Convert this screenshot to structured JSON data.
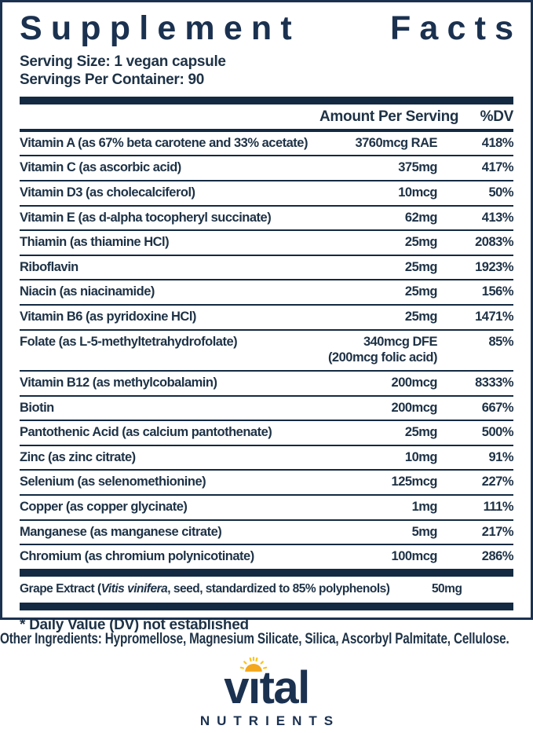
{
  "colors": {
    "navy": "#1b3150",
    "bar": "#142a42",
    "ink": "#1e3246",
    "gold": "#f3a81d",
    "ray": "#fcc21c"
  },
  "panel": {
    "title_word1": "Supplement",
    "title_word2": "Facts",
    "serving_size": "Serving Size: 1 vegan capsule",
    "servings_per_container": "Servings Per Container: 90",
    "col_amount": "Amount Per Serving",
    "col_dv": "%DV",
    "rows": [
      {
        "name": "Vitamin A (as 67% beta carotene and 33% acetate)",
        "amount": "3760mcg RAE",
        "dv": "418%"
      },
      {
        "name": "Vitamin C (as ascorbic acid)",
        "amount": "375mg",
        "dv": "417%"
      },
      {
        "name": "Vitamin D3 (as cholecalciferol)",
        "amount": "10mcg",
        "dv": "50%"
      },
      {
        "name": "Vitamin E (as d-alpha tocopheryl succinate)",
        "amount": "62mg",
        "dv": "413%"
      },
      {
        "name": "Thiamin (as thiamine HCl)",
        "amount": "25mg",
        "dv": "2083%"
      },
      {
        "name": "Riboflavin",
        "amount": "25mg",
        "dv": "1923%"
      },
      {
        "name": "Niacin (as niacinamide)",
        "amount": "25mg",
        "dv": "156%"
      },
      {
        "name": "Vitamin B6 (as pyridoxine HCl)",
        "amount": "25mg",
        "dv": "1471%"
      },
      {
        "name": "Folate (as L-5-methyltetrahydrofolate)",
        "amount": "340mcg DFE",
        "amount2": "(200mcg folic acid)",
        "dv": "85%"
      },
      {
        "name": "Vitamin B12 (as methylcobalamin)",
        "amount": "200mcg",
        "dv": "8333%"
      },
      {
        "name": "Biotin",
        "amount": "200mcg",
        "dv": "667%"
      },
      {
        "name": "Pantothenic Acid (as calcium pantothenate)",
        "amount": "25mg",
        "dv": "500%"
      },
      {
        "name": "Zinc (as zinc citrate)",
        "amount": "10mg",
        "dv": "91%"
      },
      {
        "name": "Selenium (as selenomethionine)",
        "amount": "125mcg",
        "dv": "227%"
      },
      {
        "name": "Copper (as copper glycinate)",
        "amount": "1mg",
        "dv": "111%"
      },
      {
        "name": "Manganese (as manganese citrate)",
        "amount": "5mg",
        "dv": "217%"
      },
      {
        "name": "Chromium (as chromium polynicotinate)",
        "amount": "100mcg",
        "dv": "286%"
      }
    ],
    "grape": {
      "prefix": "Grape Extract (",
      "italic": "Vitis vinifera",
      "suffix": ", seed, standardized to 85% polyphenols)",
      "amount": "50mg",
      "dv": "*"
    },
    "footnote": "* Daily Value (DV) not established"
  },
  "other_ingredients": "Other Ingredients: Hypromellose, Magnesium Silicate, Silica, Ascorbyl Palmitate, Cellulose.",
  "logo": {
    "pre": "v",
    "i_char": "ı",
    "post": "tal",
    "subtext": "NUTRIENTS"
  }
}
